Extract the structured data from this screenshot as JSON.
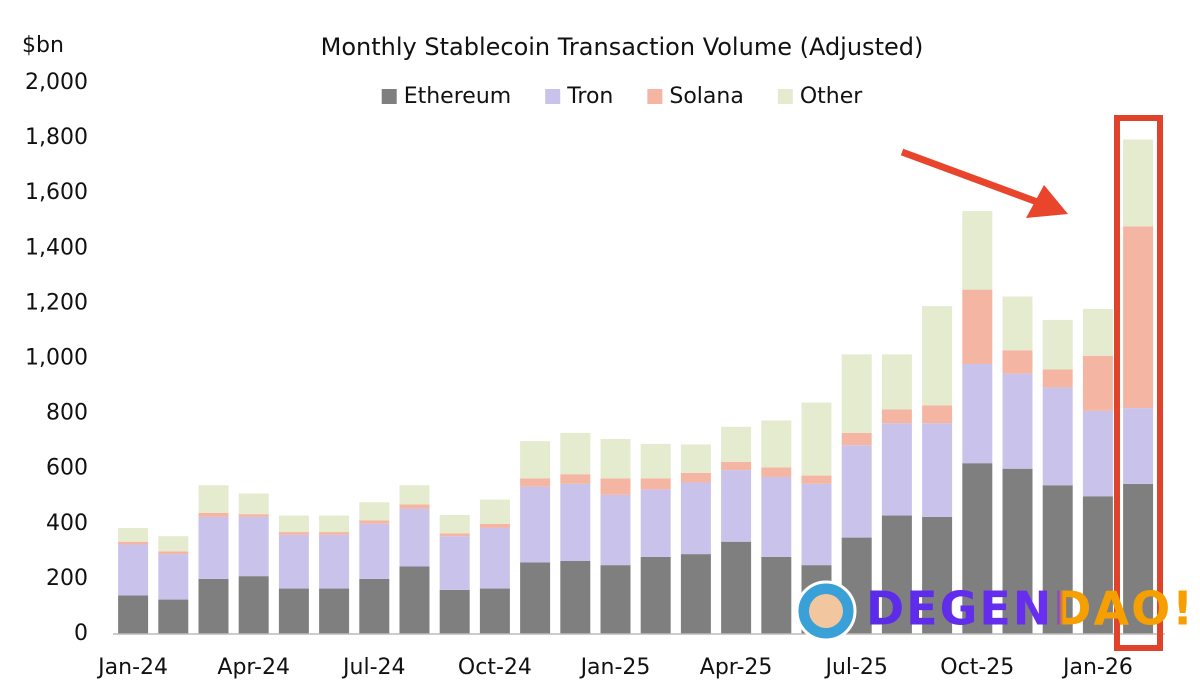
{
  "chart_data": {
    "type": "bar",
    "stacked": true,
    "title": "Monthly Stablecoin Transaction Volume (Adjusted)",
    "y_label": "$bn",
    "watermark": "DEGENDAO!",
    "categories": [
      "Jan-24",
      null,
      null,
      "Apr-24",
      null,
      null,
      "Jul-24",
      null,
      null,
      "Oct-24",
      null,
      null,
      "Jan-25",
      null,
      null,
      "Apr-25",
      null,
      null,
      "Jul-25",
      null,
      null,
      "Oct-25",
      null,
      null,
      "Jan-26",
      null
    ],
    "series": [
      {
        "name": "Ethereum",
        "color": "#7f7f7f",
        "values": [
          140,
          125,
          200,
          210,
          165,
          165,
          200,
          245,
          160,
          165,
          260,
          265,
          250,
          280,
          290,
          335,
          280,
          250,
          350,
          430,
          425,
          620,
          600,
          540,
          500,
          545
        ]
      },
      {
        "name": "Tron",
        "color": "#c9c3ec",
        "values": [
          185,
          165,
          225,
          215,
          195,
          195,
          200,
          210,
          195,
          220,
          275,
          280,
          255,
          245,
          260,
          260,
          290,
          295,
          335,
          335,
          340,
          360,
          345,
          355,
          310,
          275
        ]
      },
      {
        "name": "Solana",
        "color": "#f4b6a3",
        "values": [
          10,
          10,
          15,
          10,
          10,
          10,
          12,
          15,
          10,
          15,
          30,
          35,
          60,
          40,
          35,
          30,
          35,
          30,
          45,
          50,
          65,
          270,
          85,
          65,
          200,
          660
        ]
      },
      {
        "name": "Other",
        "color": "#e4ebcf",
        "values": [
          50,
          55,
          100,
          75,
          60,
          60,
          66,
          70,
          67,
          88,
          135,
          150,
          143,
          125,
          103,
          127,
          170,
          265,
          285,
          200,
          360,
          285,
          195,
          180,
          170,
          315
        ]
      }
    ],
    "ylim": [
      0,
      2000
    ],
    "yticks": [
      0,
      200,
      400,
      600,
      800,
      {
        "value": 1000,
        "label": "1,000"
      },
      {
        "value": 1200,
        "label": "1,200"
      },
      {
        "value": 1400,
        "label": "1,400"
      },
      {
        "value": 1600,
        "label": "1,600"
      },
      {
        "value": 1800,
        "label": "1,800"
      },
      {
        "value": 2000,
        "label": "2,000"
      }
    ],
    "grid": false,
    "legend": "top"
  }
}
